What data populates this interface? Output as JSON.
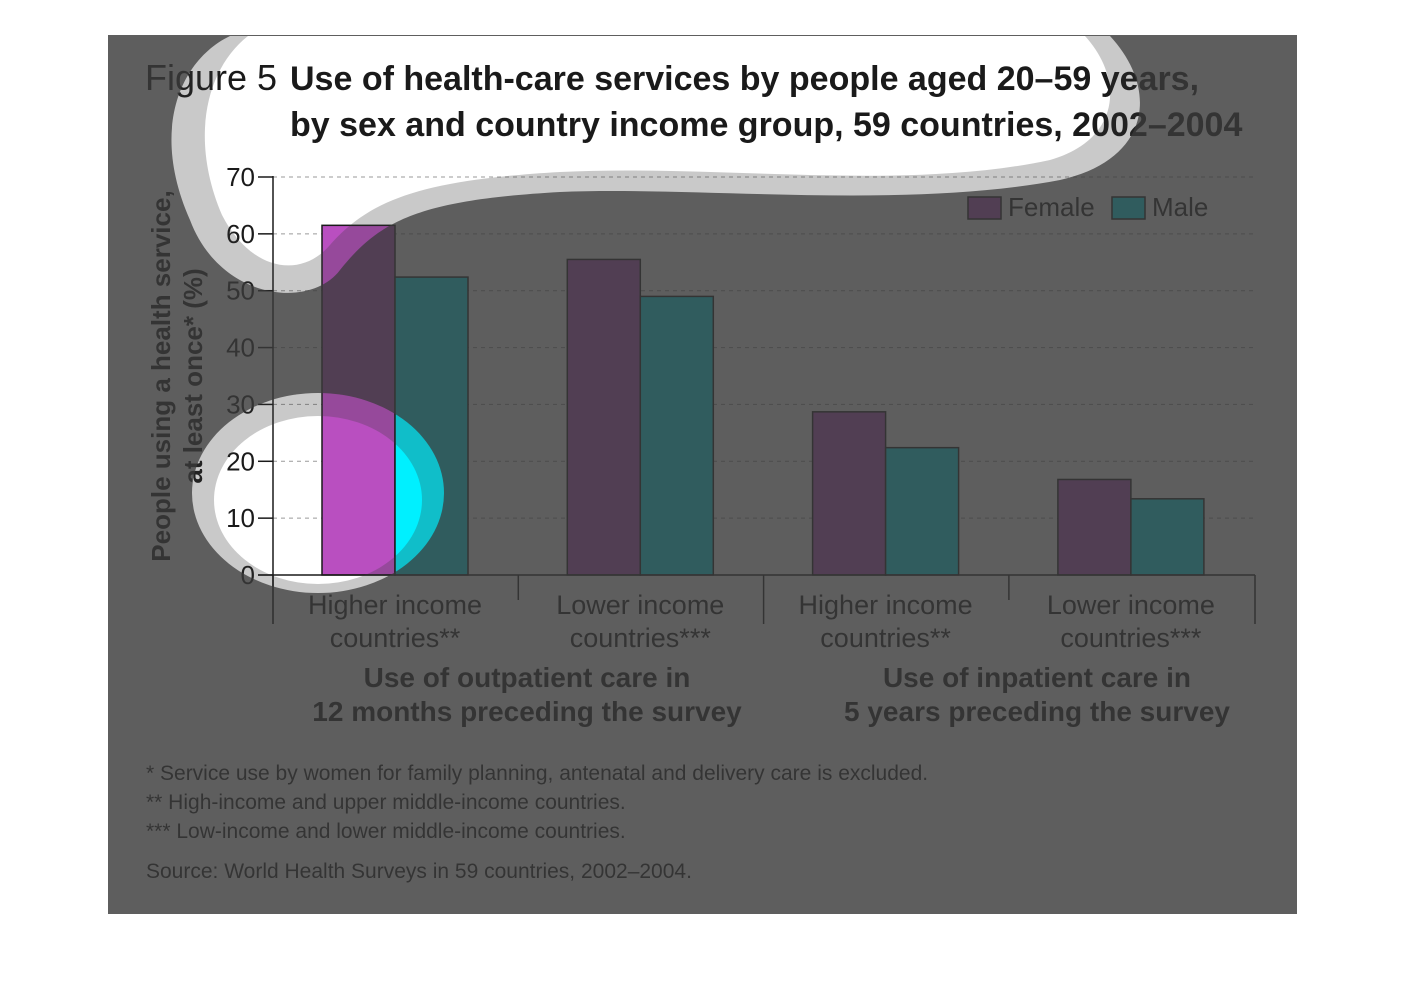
{
  "figure": {
    "number_label": "Figure 5",
    "title_lines": [
      "Use of health-care services by people aged 20–59 years,",
      "by sex and country income group, 59 countries, 2002–2004"
    ]
  },
  "chart_data": {
    "type": "bar",
    "title": "Use of health-care services by people aged 20–59 years, by sex and country income group, 59 countries, 2002–2004",
    "ylabel_lines": [
      "People using a health service,",
      "at least once* (%)"
    ],
    "xlabel": "",
    "ylim": [
      0,
      70
    ],
    "yticks": [
      0,
      10,
      20,
      30,
      40,
      50,
      60,
      70
    ],
    "grid": true,
    "legend_position": "top-right",
    "categories": [
      [
        "Higher income",
        "countries**"
      ],
      [
        "Lower income",
        "countries***"
      ],
      [
        "Higher income",
        "countries**"
      ],
      [
        "Lower income",
        "countries***"
      ]
    ],
    "groups": [
      {
        "lines": [
          "Use of outpatient care in",
          "12 months preceding the survey"
        ],
        "categories": [
          0,
          1
        ]
      },
      {
        "lines": [
          "Use of inpatient care in",
          "5 years preceding the survey"
        ],
        "categories": [
          2,
          3
        ]
      }
    ],
    "series": [
      {
        "name": "Female",
        "color": "#b94fc0",
        "values": [
          61.5,
          55.5,
          28.7,
          16.8
        ]
      },
      {
        "name": "Male",
        "color": "#00f0ff",
        "values": [
          52.4,
          49.0,
          22.4,
          13.4
        ]
      }
    ]
  },
  "footnotes": [
    "* Service use by women for family planning, antenatal and delivery care is excluded.",
    "** High-income and upper middle-income countries.",
    "*** Low-income and lower middle-income countries."
  ],
  "source": "Source: World Health Surveys in 59 countries, 2002–2004."
}
